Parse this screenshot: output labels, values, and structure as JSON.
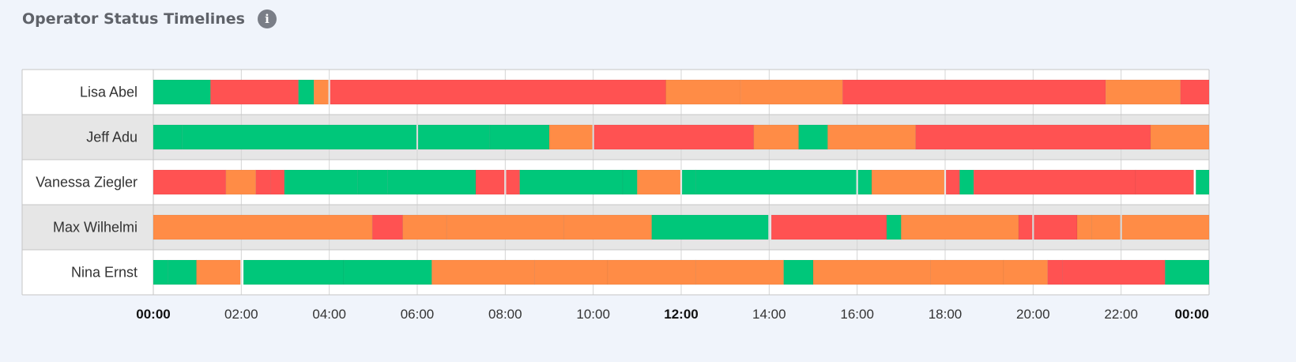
{
  "header": {
    "title": "Operator Status Timelines",
    "info_icon": "info-icon"
  },
  "colors": {
    "green": "#00c77a",
    "red": "#ff5252",
    "orange": "#ff8c46"
  },
  "chart_data": {
    "type": "timeline",
    "x_unit": "hours",
    "xlim": [
      0,
      24
    ],
    "ticks": [
      {
        "value": 0,
        "label": "00:00",
        "bold": true
      },
      {
        "value": 2,
        "label": "02:00",
        "bold": false
      },
      {
        "value": 4,
        "label": "04:00",
        "bold": false
      },
      {
        "value": 6,
        "label": "06:00",
        "bold": false
      },
      {
        "value": 8,
        "label": "08:00",
        "bold": false
      },
      {
        "value": 10,
        "label": "10:00",
        "bold": false
      },
      {
        "value": 12,
        "label": "12:00",
        "bold": true
      },
      {
        "value": 14,
        "label": "14:00",
        "bold": false
      },
      {
        "value": 16,
        "label": "16:00",
        "bold": false
      },
      {
        "value": 18,
        "label": "18:00",
        "bold": false
      },
      {
        "value": 20,
        "label": "20:00",
        "bold": false
      },
      {
        "value": 22,
        "label": "22:00",
        "bold": false
      },
      {
        "value": 24,
        "label": "00:00",
        "bold": true
      }
    ],
    "rows": [
      {
        "name": "Lisa Abel",
        "segments": [
          {
            "start": 0.0,
            "end": 1.3,
            "status": "green"
          },
          {
            "start": 1.3,
            "end": 3.3,
            "status": "red"
          },
          {
            "start": 3.3,
            "end": 3.65,
            "status": "green"
          },
          {
            "start": 3.65,
            "end": 3.98,
            "status": "orange"
          },
          {
            "start": 4.02,
            "end": 11.65,
            "status": "red"
          },
          {
            "start": 11.65,
            "end": 13.35,
            "status": "orange"
          },
          {
            "start": 13.35,
            "end": 15.67,
            "status": "orange"
          },
          {
            "start": 15.67,
            "end": 21.65,
            "status": "red"
          },
          {
            "start": 21.65,
            "end": 23.35,
            "status": "orange"
          },
          {
            "start": 23.35,
            "end": 24.0,
            "status": "red"
          }
        ]
      },
      {
        "name": "Jeff Adu",
        "segments": [
          {
            "start": 0.0,
            "end": 0.65,
            "status": "green"
          },
          {
            "start": 0.65,
            "end": 5.98,
            "status": "green"
          },
          {
            "start": 6.02,
            "end": 7.65,
            "status": "green"
          },
          {
            "start": 7.65,
            "end": 9.0,
            "status": "green"
          },
          {
            "start": 9.0,
            "end": 9.98,
            "status": "orange"
          },
          {
            "start": 10.02,
            "end": 13.65,
            "status": "red"
          },
          {
            "start": 13.65,
            "end": 14.67,
            "status": "orange"
          },
          {
            "start": 14.67,
            "end": 15.33,
            "status": "green"
          },
          {
            "start": 15.33,
            "end": 17.33,
            "status": "orange"
          },
          {
            "start": 17.33,
            "end": 22.67,
            "status": "red"
          },
          {
            "start": 22.67,
            "end": 24.0,
            "status": "orange"
          }
        ]
      },
      {
        "name": "Vanessa Ziegler",
        "segments": [
          {
            "start": 0.0,
            "end": 1.65,
            "status": "red"
          },
          {
            "start": 1.65,
            "end": 2.33,
            "status": "orange"
          },
          {
            "start": 2.33,
            "end": 2.67,
            "status": "red"
          },
          {
            "start": 2.67,
            "end": 2.98,
            "status": "red"
          },
          {
            "start": 2.98,
            "end": 4.65,
            "status": "green"
          },
          {
            "start": 4.65,
            "end": 5.33,
            "status": "green"
          },
          {
            "start": 5.33,
            "end": 7.33,
            "status": "green"
          },
          {
            "start": 7.33,
            "end": 7.98,
            "status": "red"
          },
          {
            "start": 8.02,
            "end": 8.33,
            "status": "red"
          },
          {
            "start": 8.33,
            "end": 10.67,
            "status": "green"
          },
          {
            "start": 10.67,
            "end": 11.0,
            "status": "green"
          },
          {
            "start": 11.0,
            "end": 11.98,
            "status": "orange"
          },
          {
            "start": 12.02,
            "end": 12.33,
            "status": "green"
          },
          {
            "start": 12.33,
            "end": 15.98,
            "status": "green"
          },
          {
            "start": 16.02,
            "end": 16.33,
            "status": "green"
          },
          {
            "start": 16.33,
            "end": 17.98,
            "status": "orange"
          },
          {
            "start": 18.02,
            "end": 18.33,
            "status": "red"
          },
          {
            "start": 18.33,
            "end": 18.65,
            "status": "green"
          },
          {
            "start": 18.65,
            "end": 22.33,
            "status": "red"
          },
          {
            "start": 22.33,
            "end": 23.65,
            "status": "red"
          },
          {
            "start": 23.7,
            "end": 24.0,
            "status": "green"
          }
        ]
      },
      {
        "name": "Max Wilhelmi",
        "segments": [
          {
            "start": 0.0,
            "end": 4.98,
            "status": "orange"
          },
          {
            "start": 4.98,
            "end": 5.67,
            "status": "red"
          },
          {
            "start": 5.67,
            "end": 6.67,
            "status": "orange"
          },
          {
            "start": 6.67,
            "end": 9.33,
            "status": "orange"
          },
          {
            "start": 9.33,
            "end": 11.33,
            "status": "orange"
          },
          {
            "start": 11.33,
            "end": 13.98,
            "status": "green"
          },
          {
            "start": 14.05,
            "end": 16.67,
            "status": "red"
          },
          {
            "start": 16.67,
            "end": 17.0,
            "status": "green"
          },
          {
            "start": 17.0,
            "end": 19.67,
            "status": "orange"
          },
          {
            "start": 19.67,
            "end": 19.98,
            "status": "red"
          },
          {
            "start": 20.02,
            "end": 21.0,
            "status": "red"
          },
          {
            "start": 21.0,
            "end": 21.33,
            "status": "orange"
          },
          {
            "start": 21.33,
            "end": 21.98,
            "status": "orange"
          },
          {
            "start": 22.02,
            "end": 24.0,
            "status": "orange"
          }
        ]
      },
      {
        "name": "Nina Ernst",
        "segments": [
          {
            "start": 0.0,
            "end": 0.33,
            "status": "green"
          },
          {
            "start": 0.33,
            "end": 0.98,
            "status": "green"
          },
          {
            "start": 0.98,
            "end": 1.98,
            "status": "orange"
          },
          {
            "start": 2.05,
            "end": 4.33,
            "status": "green"
          },
          {
            "start": 4.33,
            "end": 6.33,
            "status": "green"
          },
          {
            "start": 6.33,
            "end": 8.67,
            "status": "orange"
          },
          {
            "start": 8.67,
            "end": 10.33,
            "status": "orange"
          },
          {
            "start": 10.33,
            "end": 12.33,
            "status": "orange"
          },
          {
            "start": 12.33,
            "end": 14.33,
            "status": "orange"
          },
          {
            "start": 14.33,
            "end": 15.0,
            "status": "green"
          },
          {
            "start": 15.0,
            "end": 17.67,
            "status": "orange"
          },
          {
            "start": 17.67,
            "end": 19.33,
            "status": "orange"
          },
          {
            "start": 19.33,
            "end": 20.33,
            "status": "orange"
          },
          {
            "start": 20.33,
            "end": 20.67,
            "status": "red"
          },
          {
            "start": 20.67,
            "end": 23.0,
            "status": "red"
          },
          {
            "start": 23.0,
            "end": 24.0,
            "status": "green"
          }
        ]
      }
    ]
  }
}
